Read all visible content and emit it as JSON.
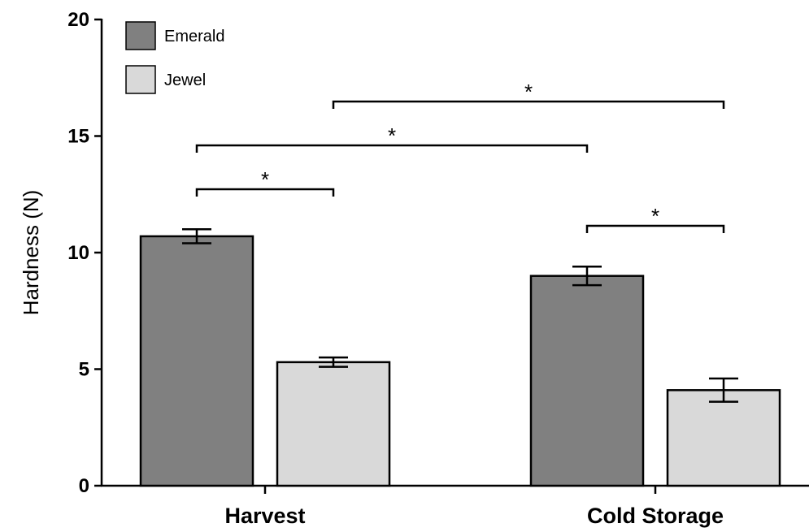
{
  "chart_data": {
    "type": "bar",
    "title": "",
    "xlabel": "",
    "ylabel": "Hardness (N)",
    "ylim": [
      0,
      20
    ],
    "yticks": [
      0,
      5,
      10,
      15,
      20
    ],
    "categories": [
      "Harvest",
      "Cold Storage"
    ],
    "series": [
      {
        "name": "Emerald",
        "values": [
          10.7,
          9.0
        ],
        "errors": [
          0.3,
          0.4
        ],
        "color": "#808080"
      },
      {
        "name": "Jewel",
        "values": [
          5.3,
          4.1
        ],
        "errors": [
          0.2,
          0.5
        ],
        "color": "#d9d9d9"
      }
    ],
    "legend": {
      "position": "top-left"
    },
    "grid": false,
    "significance": [
      {
        "from": {
          "category": 0,
          "series": 0
        },
        "to": {
          "category": 0,
          "series": 1
        },
        "label": "*"
      },
      {
        "from": {
          "category": 0,
          "series": 0
        },
        "to": {
          "category": 1,
          "series": 0
        },
        "label": "*"
      },
      {
        "from": {
          "category": 0,
          "series": 1
        },
        "to": {
          "category": 1,
          "series": 1
        },
        "label": "*"
      },
      {
        "from": {
          "category": 1,
          "series": 0
        },
        "to": {
          "category": 1,
          "series": 1
        },
        "label": "*"
      }
    ]
  }
}
